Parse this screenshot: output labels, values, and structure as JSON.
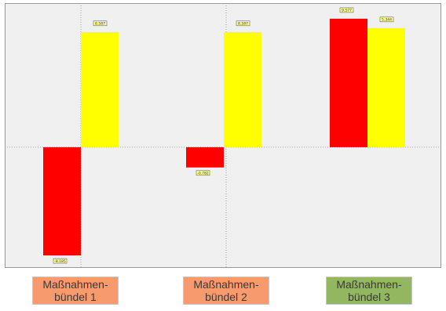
{
  "chart_data": {
    "type": "bar",
    "categories": [
      "Maßnahmen-\nbündel 1",
      "Maßnahmen-\nbündel 2",
      "Maßnahmen-\nbündel 3"
    ],
    "series": [
      {
        "color": "#ff0000",
        "values": [
          -139,
          -26,
          165
        ]
      },
      {
        "color": "#ffff00",
        "values": [
          148,
          148,
          153
        ]
      }
    ],
    "value_labels": [
      [
        "-8.185",
        "8.587"
      ],
      [
        "-0.782",
        "8.587"
      ],
      [
        "9.577",
        "5.344"
      ]
    ],
    "ylim": [
      -155,
      185
    ],
    "grid": true,
    "category_colors": [
      "#f79a6e",
      "#f79a6e",
      "#93b660"
    ],
    "plot_background": "#f0f0f0"
  }
}
